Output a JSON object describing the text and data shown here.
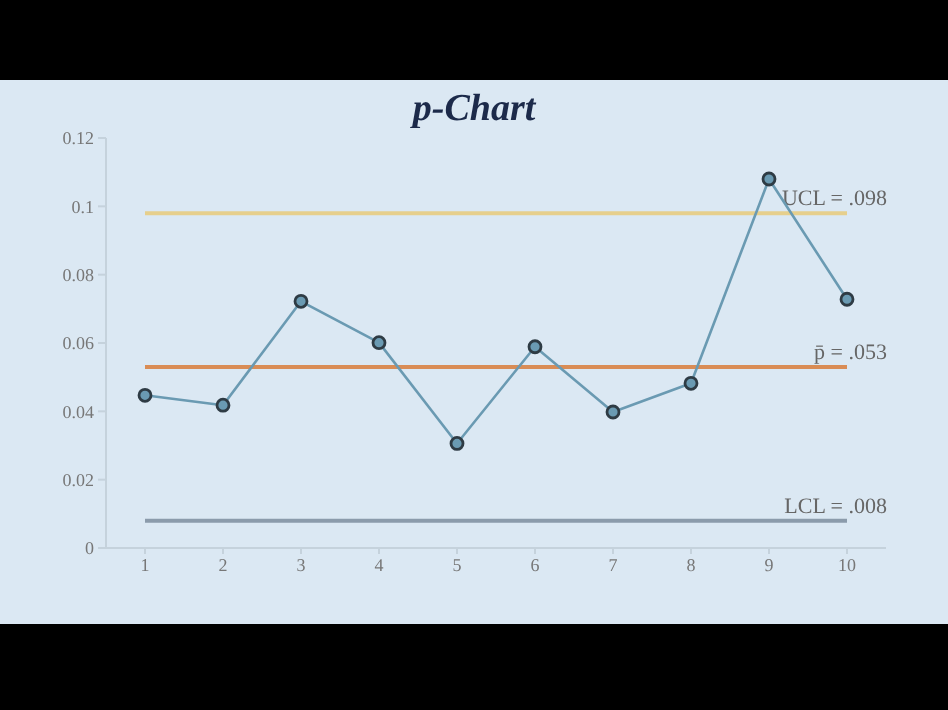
{
  "chart_data": {
    "type": "line",
    "title": "p-Chart",
    "x": [
      1,
      2,
      3,
      4,
      5,
      6,
      7,
      8,
      9,
      10
    ],
    "series": [
      {
        "color": "#6a9ab2",
        "values": [
          0.0447,
          0.0418,
          0.0722,
          0.0601,
          0.0306,
          0.0589,
          0.0398,
          0.0482,
          0.108,
          0.0728
        ]
      }
    ],
    "xlim": [
      0.5,
      10.5
    ],
    "xticks": [
      1,
      2,
      3,
      4,
      5,
      6,
      7,
      8,
      9,
      10
    ],
    "ylim": [
      0,
      0.12
    ],
    "yticks": [
      0,
      0.02,
      0.04,
      0.06,
      0.08,
      0.1,
      0.12
    ],
    "ref_lines": [
      {
        "axis": "y",
        "value": 0.098,
        "label": "UCL = .098",
        "color": "#e6cf8c"
      },
      {
        "axis": "y",
        "value": 0.053,
        "label": "p̄ = .053",
        "color": "#d98c55"
      },
      {
        "axis": "y",
        "value": 0.008,
        "label": "LCL = .008",
        "color": "#8b9bab"
      }
    ],
    "marker": "circle",
    "line_style": "solid",
    "grid": false,
    "legend": false
  }
}
